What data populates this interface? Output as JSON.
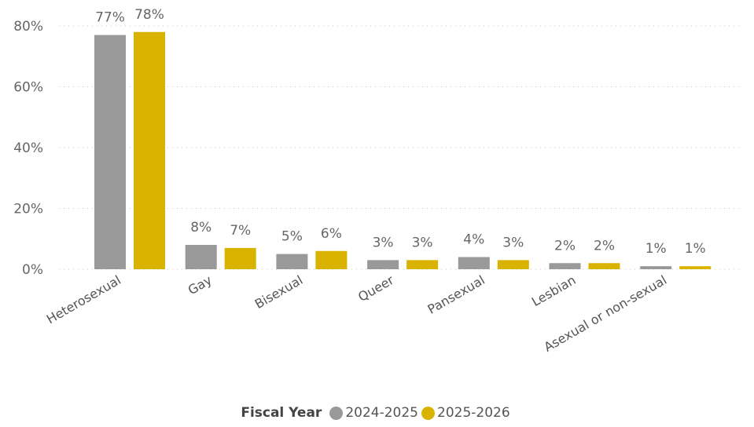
{
  "chart_data": {
    "type": "bar",
    "categories": [
      "Heterosexual",
      "Gay",
      "Bisexual",
      "Queer",
      "Pansexual",
      "Lesbian",
      "Asexual or non-sexual"
    ],
    "series": [
      {
        "name": "2024-2025",
        "color": "#999999",
        "values": [
          77,
          8,
          5,
          3,
          4,
          2,
          1
        ],
        "labels": [
          "77%",
          "8%",
          "5%",
          "3%",
          "4%",
          "2%",
          "1%"
        ]
      },
      {
        "name": "2025-2026",
        "color": "#D9B300",
        "values": [
          78,
          7,
          6,
          3,
          3,
          2,
          1
        ],
        "labels": [
          "78%",
          "7%",
          "6%",
          "3%",
          "3%",
          "2%",
          "1%"
        ]
      }
    ],
    "ylim": [
      0,
      80
    ],
    "yticks": [
      0,
      20,
      40,
      60,
      80
    ],
    "ytick_labels": [
      "0%",
      "20%",
      "40%",
      "60%",
      "80%"
    ],
    "grid": true,
    "legend": {
      "title": "Fiscal Year",
      "position": "bottom"
    }
  }
}
